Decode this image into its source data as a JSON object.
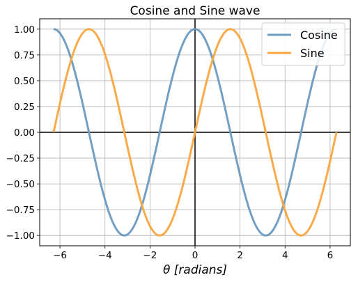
{
  "chart_data": {
    "type": "line",
    "title": "Cosine and Sine wave",
    "xlabel": "θ [radians]",
    "ylabel": "",
    "xlim": [
      -6.9,
      6.9
    ],
    "ylim": [
      -1.1,
      1.1
    ],
    "xticks": [
      -6,
      -4,
      -2,
      0,
      2,
      4,
      6
    ],
    "xtick_labels": [
      "−6",
      "−4",
      "−2",
      "0",
      "2",
      "4",
      "6"
    ],
    "yticks": [
      -1.0,
      -0.75,
      -0.5,
      -0.25,
      0.0,
      0.25,
      0.5,
      0.75,
      1.0
    ],
    "ytick_labels": [
      "−1.00",
      "−0.75",
      "−0.50",
      "−0.25",
      "0.00",
      "0.25",
      "0.50",
      "0.75",
      "1.00"
    ],
    "grid": true,
    "x_range": [
      -6.283,
      6.283
    ],
    "legend": "top-right",
    "series": [
      {
        "name": "Cosine",
        "function": "cos",
        "color": "#6c9ac0"
      },
      {
        "name": "Sine",
        "function": "sin",
        "color": "#f9a640"
      }
    ]
  }
}
